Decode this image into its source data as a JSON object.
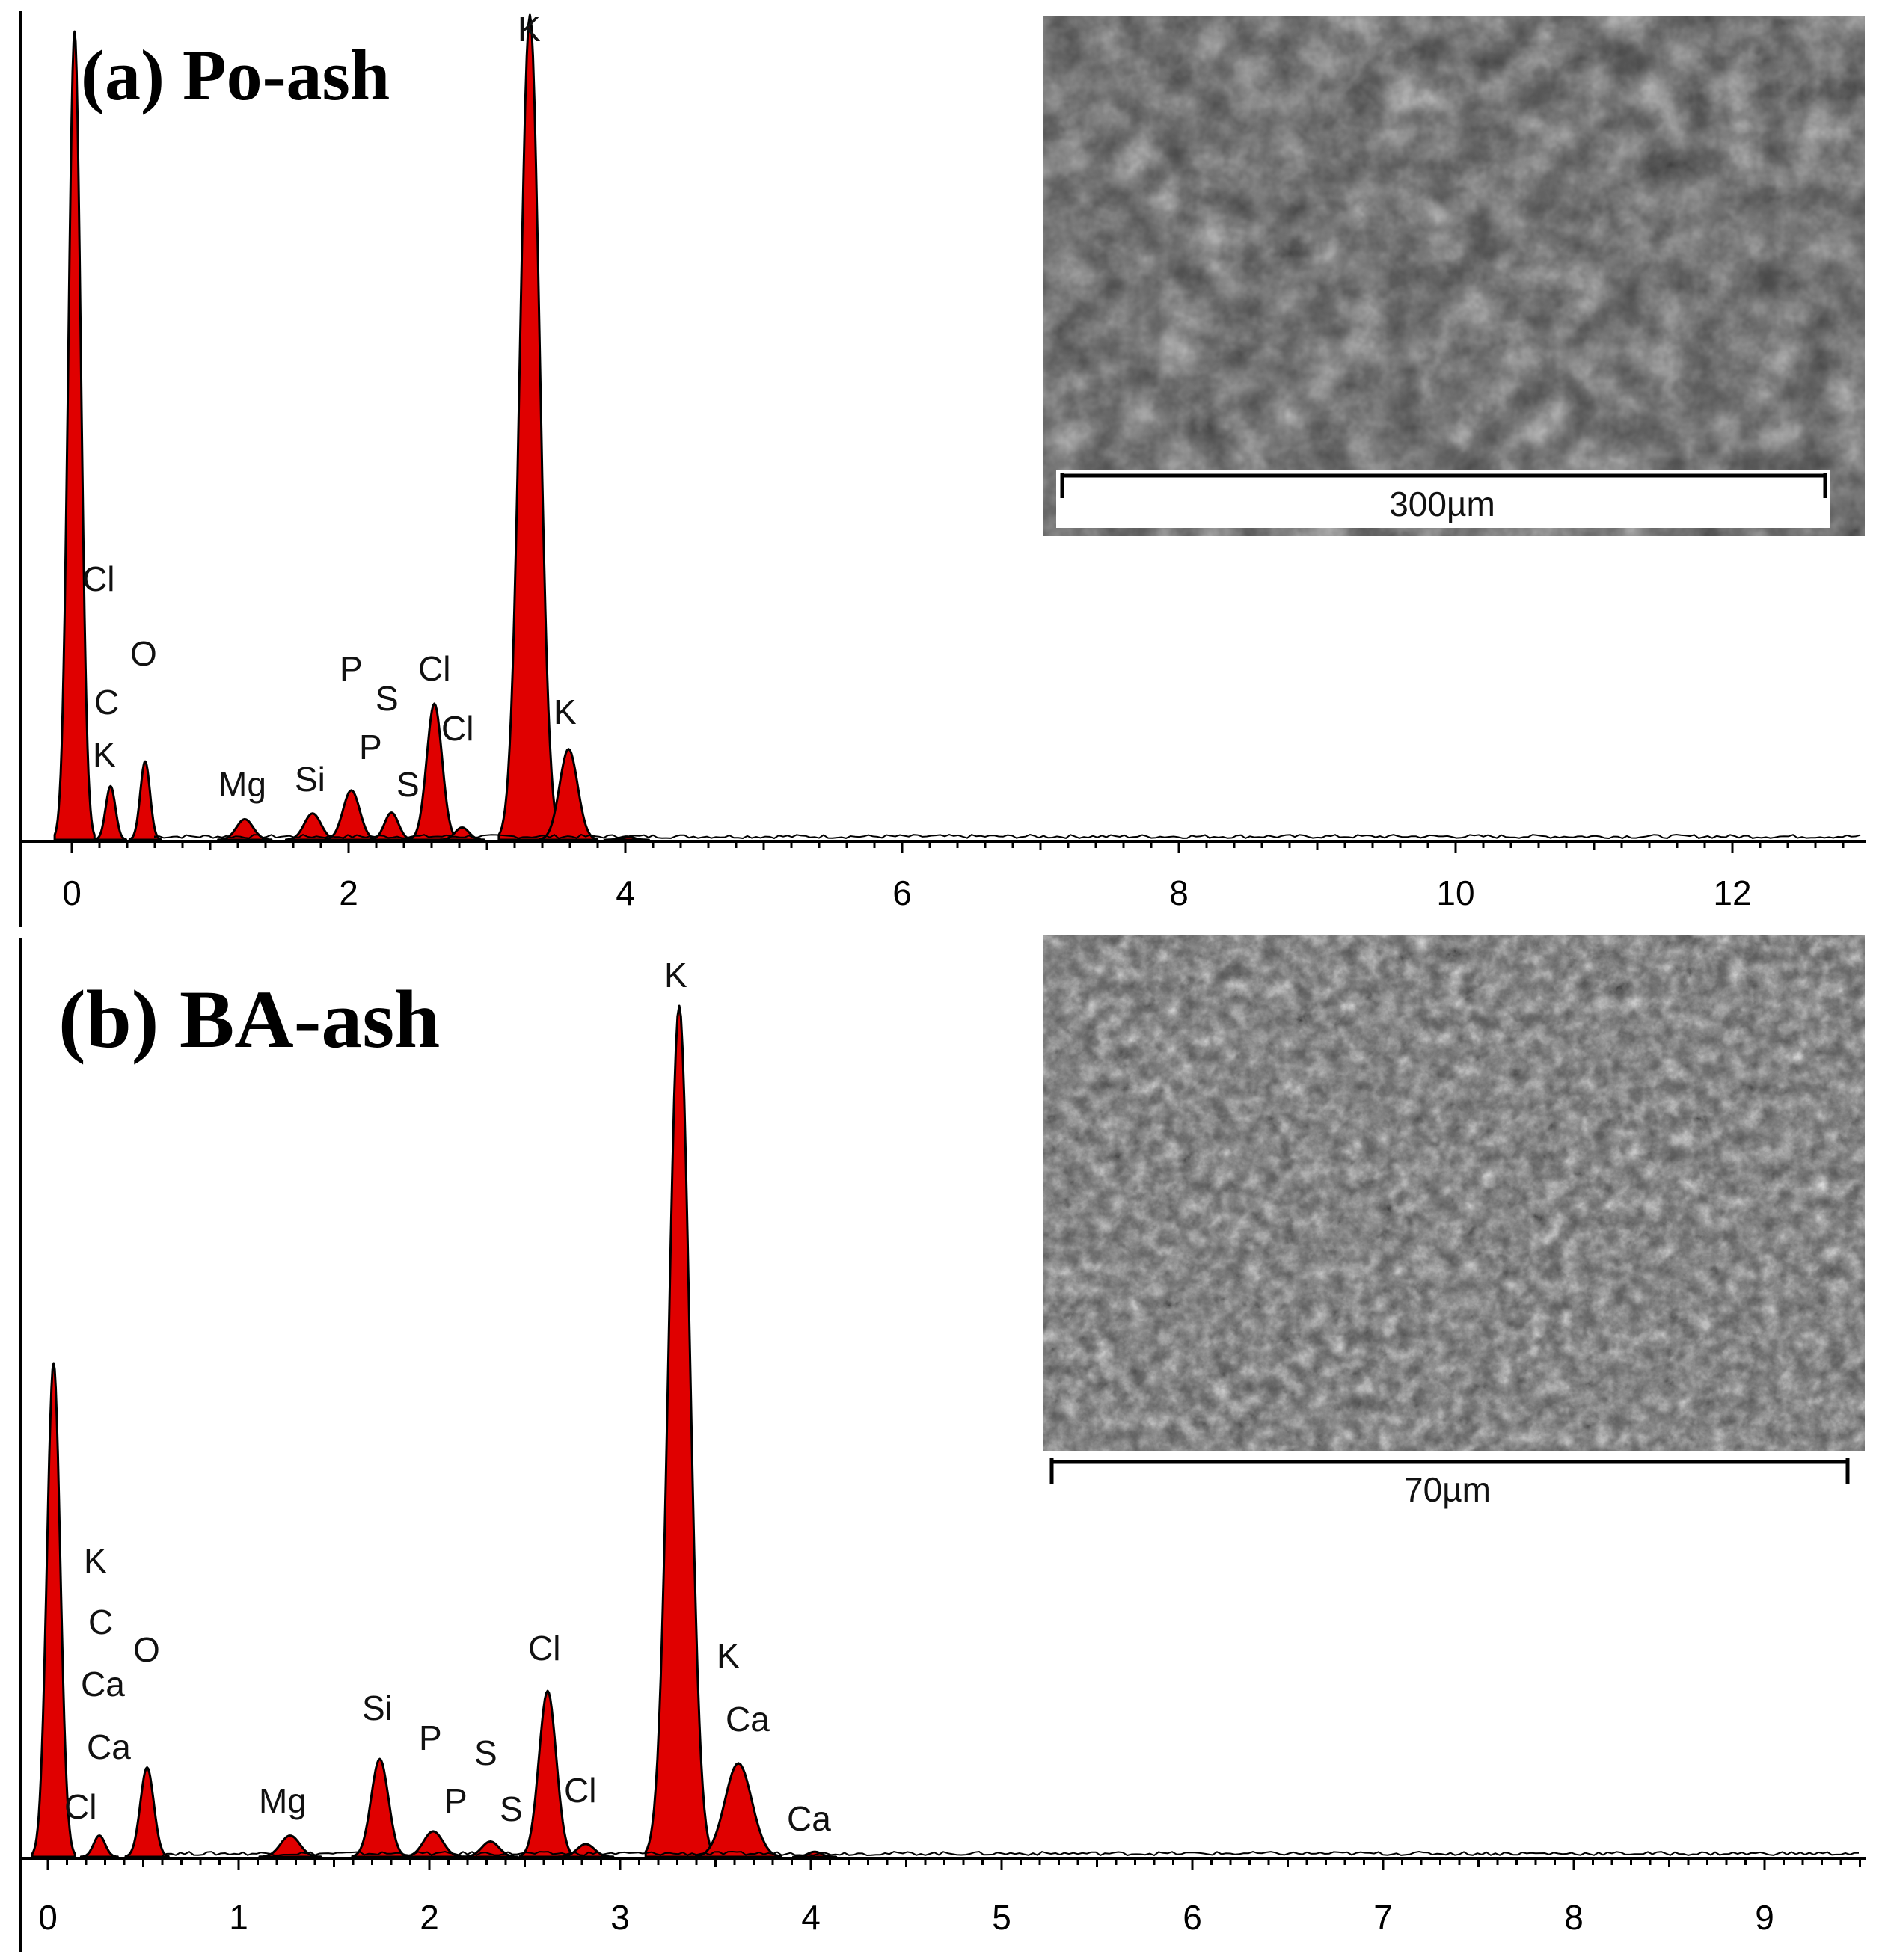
{
  "colors": {
    "peak_fill": "#e00000",
    "peak_stroke": "#000000",
    "axis": "#000000",
    "sem_dark": "#3a3a3a",
    "sem_light": "#8a8a8a"
  },
  "chart_data": [
    {
      "type": "area",
      "title": "(a) Po-ash",
      "xlabel": "",
      "ylabel": "",
      "xlim": [
        -0.4,
        13
      ],
      "ylim": [
        0,
        100
      ],
      "x_ticks": [
        "0",
        "2",
        "4",
        "6",
        "8",
        "10",
        "12"
      ],
      "grid": false,
      "peaks": [
        {
          "x": 0.02,
          "height": 98,
          "width": 0.045
        },
        {
          "x": 0.28,
          "height": 6.5,
          "width": 0.035
        },
        {
          "x": 0.53,
          "height": 9.5,
          "width": 0.035
        },
        {
          "x": 1.25,
          "height": 2.5,
          "width": 0.06
        },
        {
          "x": 1.74,
          "height": 3.2,
          "width": 0.06
        },
        {
          "x": 2.02,
          "height": 6.0,
          "width": 0.06
        },
        {
          "x": 2.31,
          "height": 3.3,
          "width": 0.05
        },
        {
          "x": 2.62,
          "height": 16.5,
          "width": 0.055
        },
        {
          "x": 2.82,
          "height": 1.5,
          "width": 0.05
        },
        {
          "x": 3.31,
          "height": 100,
          "width": 0.07
        },
        {
          "x": 3.59,
          "height": 11.0,
          "width": 0.065
        },
        {
          "x": 4.01,
          "height": 0.4,
          "width": 0.05
        }
      ],
      "labels": [
        "Cl",
        "C",
        "O",
        "K",
        "Mg",
        "Si",
        "P",
        "S",
        "Cl",
        "P",
        "S",
        "Cl",
        "K",
        "K"
      ],
      "inset": {
        "scale_text": "300µm"
      }
    },
    {
      "type": "area",
      "title": "(b) BA-ash",
      "xlabel": "",
      "ylabel": "",
      "xlim": [
        -0.2,
        9.6
      ],
      "ylim": [
        0,
        100
      ],
      "x_ticks": [
        "0",
        "1",
        "2",
        "3",
        "4",
        "5",
        "6",
        "7",
        "8",
        "9"
      ],
      "grid": false,
      "peaks": [
        {
          "x": 0.03,
          "height": 58,
          "width": 0.035
        },
        {
          "x": 0.27,
          "height": 2.5,
          "width": 0.03
        },
        {
          "x": 0.52,
          "height": 10.5,
          "width": 0.035
        },
        {
          "x": 1.27,
          "height": 2.5,
          "width": 0.05
        },
        {
          "x": 1.74,
          "height": 11.5,
          "width": 0.045
        },
        {
          "x": 2.02,
          "height": 3.0,
          "width": 0.05
        },
        {
          "x": 2.32,
          "height": 1.8,
          "width": 0.045
        },
        {
          "x": 2.62,
          "height": 19.5,
          "width": 0.045
        },
        {
          "x": 2.82,
          "height": 1.5,
          "width": 0.045
        },
        {
          "x": 3.31,
          "height": 100,
          "width": 0.055
        },
        {
          "x": 3.62,
          "height": 11.0,
          "width": 0.07
        },
        {
          "x": 4.02,
          "height": 0.6,
          "width": 0.035
        }
      ],
      "labels": [
        "K",
        "C",
        "O",
        "Ca",
        "Ca",
        "Cl",
        "Mg",
        "Si",
        "P",
        "S",
        "P",
        "S",
        "Cl",
        "Cl",
        "K",
        "K",
        "Ca",
        "Ca"
      ],
      "inset": {
        "scale_text": "70µm"
      }
    }
  ]
}
